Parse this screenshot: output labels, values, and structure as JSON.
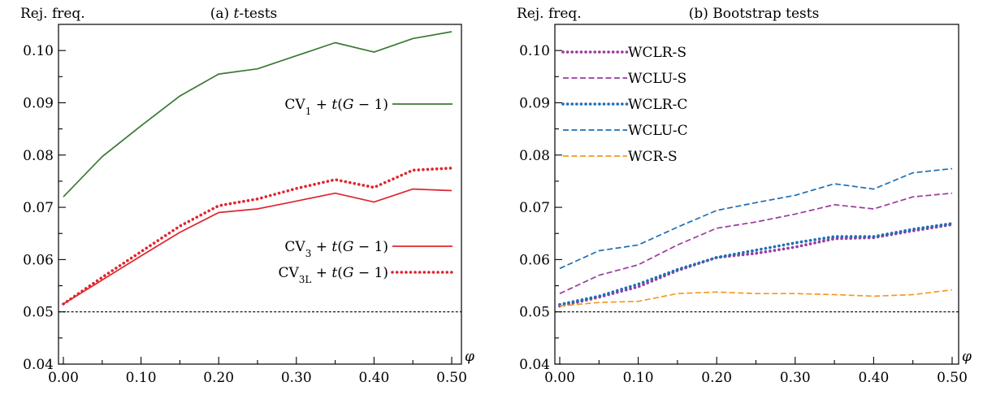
{
  "chart_data": [
    {
      "type": "line",
      "title": "(a) t-tests",
      "title_prefix": "(a) ",
      "title_italic": "t",
      "title_suffix": "-tests",
      "ylabel": "Rej. freq.",
      "xlabel": "φ",
      "xlim": [
        0.0,
        0.5
      ],
      "ylim": [
        0.04,
        0.105
      ],
      "xticks": [
        0.0,
        0.1,
        0.2,
        0.3,
        0.4,
        0.5
      ],
      "xtick_labels": [
        "0.00",
        "0.10",
        "0.20",
        "0.30",
        "0.40",
        "0.50"
      ],
      "yticks": [
        0.04,
        0.05,
        0.06,
        0.07,
        0.08,
        0.09,
        0.1
      ],
      "ytick_labels": [
        "0.04",
        "0.05",
        "0.06",
        "0.07",
        "0.08",
        "0.09",
        "0.10"
      ],
      "reference_line": 0.05,
      "x": [
        0.0,
        0.05,
        0.1,
        0.15,
        0.2,
        0.25,
        0.3,
        0.35,
        0.4,
        0.45,
        0.5
      ],
      "legend_placement": "inline-right",
      "series": [
        {
          "name": "CV1 + t(G − 1)",
          "label_main": "CV",
          "label_sub": "1",
          "label_rest": " + t(G − 1)",
          "color": "#3a7a34",
          "style": "solid",
          "values": [
            0.072,
            0.0797,
            0.0856,
            0.0913,
            0.0955,
            0.0965,
            0.099,
            0.1015,
            0.0997,
            0.1023,
            0.1036
          ]
        },
        {
          "name": "CV3 + t(G − 1)",
          "label_main": "CV",
          "label_sub": "3",
          "label_rest": " + t(G − 1)",
          "color": "#e0262e",
          "style": "solid",
          "values": [
            0.0515,
            0.0561,
            0.0607,
            0.0652,
            0.069,
            0.0697,
            0.0712,
            0.0727,
            0.071,
            0.0735,
            0.0732
          ]
        },
        {
          "name": "CV3L + t(G − 1)",
          "label_main": "CV",
          "label_sub": "3L",
          "label_rest": " + t(G − 1)",
          "color": "#e0262e",
          "style": "dotted",
          "values": [
            0.0515,
            0.0566,
            0.0615,
            0.0664,
            0.0703,
            0.0716,
            0.0736,
            0.0753,
            0.0738,
            0.0771,
            0.0775
          ]
        }
      ]
    },
    {
      "type": "line",
      "title": "(b) Bootstrap tests",
      "ylabel": "Rej. freq.",
      "xlabel": "φ",
      "xlim": [
        0.0,
        0.5
      ],
      "ylim": [
        0.04,
        0.105
      ],
      "xticks": [
        0.0,
        0.1,
        0.2,
        0.3,
        0.4,
        0.5
      ],
      "xtick_labels": [
        "0.00",
        "0.10",
        "0.20",
        "0.30",
        "0.40",
        "0.50"
      ],
      "yticks": [
        0.04,
        0.05,
        0.06,
        0.07,
        0.08,
        0.09,
        0.1
      ],
      "ytick_labels": [
        "0.04",
        "0.05",
        "0.06",
        "0.07",
        "0.08",
        "0.09",
        "0.10"
      ],
      "reference_line": 0.05,
      "x": [
        0.0,
        0.05,
        0.1,
        0.15,
        0.2,
        0.25,
        0.3,
        0.35,
        0.4,
        0.45,
        0.5
      ],
      "legend_placement": "top-left",
      "series": [
        {
          "name": "WCLR-S",
          "color": "#9a3aa0",
          "style": "dotted",
          "values": [
            0.0511,
            0.0528,
            0.0548,
            0.0579,
            0.0604,
            0.0612,
            0.0624,
            0.064,
            0.0642,
            0.0655,
            0.0667
          ]
        },
        {
          "name": "WCLU-S",
          "color": "#9a3aa0",
          "style": "dashed",
          "values": [
            0.0535,
            0.057,
            0.059,
            0.0628,
            0.066,
            0.0672,
            0.0687,
            0.0705,
            0.0697,
            0.072,
            0.0727
          ]
        },
        {
          "name": "WCLR-C",
          "color": "#1f6fb4",
          "style": "dotted",
          "values": [
            0.0514,
            0.053,
            0.0553,
            0.0581,
            0.0604,
            0.0618,
            0.0632,
            0.0644,
            0.0644,
            0.0658,
            0.0669
          ]
        },
        {
          "name": "WCLU-C",
          "color": "#1f6fb4",
          "style": "dashed",
          "values": [
            0.0583,
            0.0617,
            0.0628,
            0.0662,
            0.0694,
            0.0709,
            0.0723,
            0.0745,
            0.0735,
            0.0766,
            0.0774
          ]
        },
        {
          "name": "WCR-S",
          "color": "#f59a1f",
          "style": "dashed",
          "values": [
            0.0511,
            0.0518,
            0.052,
            0.0535,
            0.0538,
            0.0535,
            0.0535,
            0.0533,
            0.053,
            0.0533,
            0.0542
          ]
        }
      ]
    }
  ]
}
